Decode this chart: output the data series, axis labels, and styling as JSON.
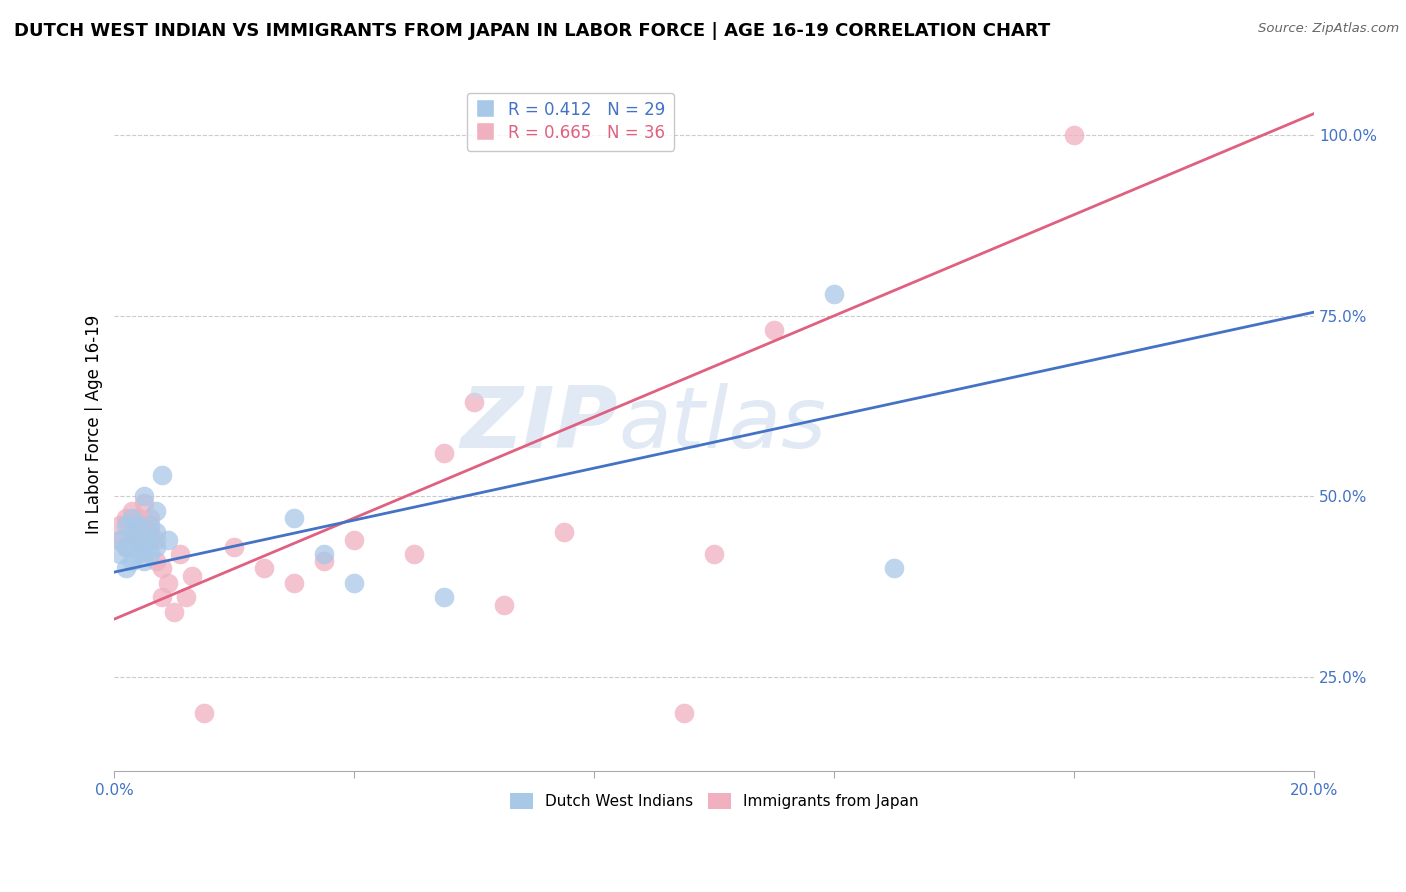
{
  "title": "DUTCH WEST INDIAN VS IMMIGRANTS FROM JAPAN IN LABOR FORCE | AGE 16-19 CORRELATION CHART",
  "source": "Source: ZipAtlas.com",
  "ylabel": "In Labor Force | Age 16-19",
  "xlim": [
    0.0,
    0.2
  ],
  "ylim": [
    0.12,
    1.08
  ],
  "xticks": [
    0.0,
    0.04,
    0.08,
    0.12,
    0.16,
    0.2
  ],
  "xticklabels": [
    "0.0%",
    "",
    "",
    "",
    "",
    "20.0%"
  ],
  "yticks": [
    0.25,
    0.5,
    0.75,
    1.0
  ],
  "yticklabels": [
    "25.0%",
    "50.0%",
    "75.0%",
    "100.0%"
  ],
  "blue_color": "#a8c8e8",
  "pink_color": "#f0b0c0",
  "blue_line_color": "#4472c4",
  "pink_line_color": "#e06080",
  "legend_r_blue": "R = 0.412",
  "legend_n_blue": "N = 29",
  "legend_r_pink": "R = 0.665",
  "legend_n_pink": "N = 36",
  "watermark_zip": "ZIP",
  "watermark_atlas": "atlas",
  "blue_x": [
    0.001,
    0.001,
    0.002,
    0.002,
    0.002,
    0.003,
    0.003,
    0.003,
    0.003,
    0.004,
    0.004,
    0.004,
    0.005,
    0.005,
    0.005,
    0.006,
    0.006,
    0.006,
    0.007,
    0.007,
    0.007,
    0.008,
    0.009,
    0.03,
    0.035,
    0.04,
    0.055,
    0.12,
    0.13
  ],
  "blue_y": [
    0.42,
    0.44,
    0.4,
    0.43,
    0.46,
    0.41,
    0.43,
    0.45,
    0.47,
    0.42,
    0.44,
    0.46,
    0.41,
    0.43,
    0.5,
    0.42,
    0.44,
    0.46,
    0.43,
    0.45,
    0.48,
    0.53,
    0.44,
    0.47,
    0.42,
    0.38,
    0.36,
    0.78,
    0.4
  ],
  "pink_x": [
    0.001,
    0.001,
    0.002,
    0.002,
    0.003,
    0.003,
    0.004,
    0.004,
    0.005,
    0.005,
    0.006,
    0.006,
    0.007,
    0.007,
    0.008,
    0.008,
    0.009,
    0.01,
    0.011,
    0.012,
    0.013,
    0.015,
    0.02,
    0.025,
    0.03,
    0.035,
    0.04,
    0.05,
    0.055,
    0.06,
    0.065,
    0.075,
    0.095,
    0.1,
    0.11,
    0.16
  ],
  "pink_y": [
    0.44,
    0.46,
    0.43,
    0.47,
    0.45,
    0.48,
    0.44,
    0.47,
    0.46,
    0.49,
    0.45,
    0.47,
    0.41,
    0.44,
    0.4,
    0.36,
    0.38,
    0.34,
    0.42,
    0.36,
    0.39,
    0.2,
    0.43,
    0.4,
    0.38,
    0.41,
    0.44,
    0.42,
    0.56,
    0.63,
    0.35,
    0.45,
    0.2,
    0.42,
    0.73,
    1.0
  ],
  "blue_line_x": [
    0.0,
    0.2
  ],
  "blue_line_y": [
    0.395,
    0.755
  ],
  "pink_line_x": [
    0.0,
    0.2
  ],
  "pink_line_y": [
    0.33,
    1.03
  ],
  "grid_color": "#cccccc",
  "background_color": "#ffffff",
  "title_fontsize": 13,
  "axis_label_fontsize": 12,
  "tick_fontsize": 11,
  "legend_fontsize": 12,
  "scatter_size": 200
}
